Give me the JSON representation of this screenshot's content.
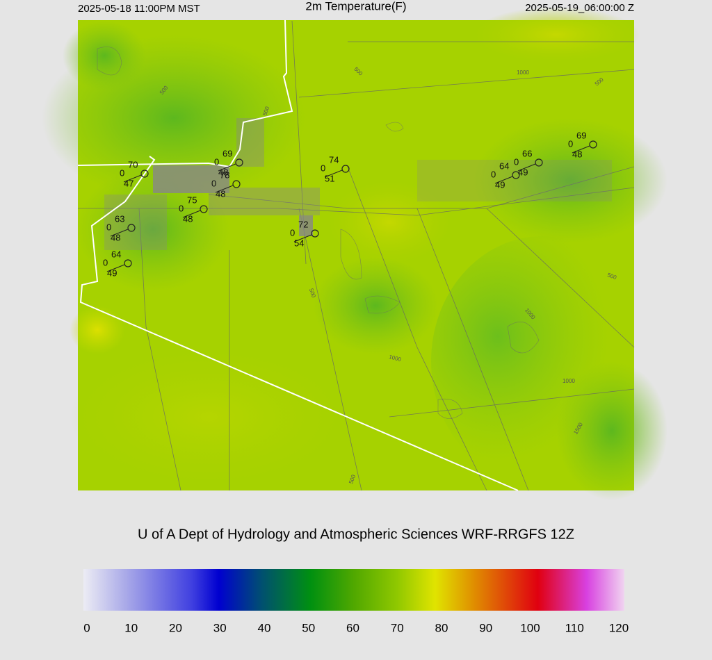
{
  "header": {
    "valid_local": "2025-05-18 11:00PM MST",
    "title": "2m Temperature(F)",
    "valid_utc": "2025-05-19_06:00:00 Z"
  },
  "stations": [
    {
      "temp": "70",
      "wind": "0",
      "dewpoint": "47"
    },
    {
      "temp": "69",
      "wind": "0",
      "dewpoint": "48"
    },
    {
      "temp": "78",
      "wind": "0",
      "dewpoint": "48"
    },
    {
      "temp": "75",
      "wind": "0",
      "dewpoint": "48"
    },
    {
      "temp": "63",
      "wind": "0",
      "dewpoint": "48"
    },
    {
      "temp": "64",
      "wind": "0",
      "dewpoint": "49"
    },
    {
      "temp": "74",
      "wind": "0",
      "dewpoint": "51"
    },
    {
      "temp": "72",
      "wind": "0",
      "dewpoint": "54"
    },
    {
      "temp": "64",
      "wind": "0",
      "dewpoint": "49"
    },
    {
      "temp": "66",
      "wind": "0",
      "dewpoint": "49"
    },
    {
      "temp": "69",
      "wind": "0",
      "dewpoint": "48"
    }
  ],
  "contour_labels": [
    "500",
    "500",
    "1000",
    "500",
    "500",
    "500",
    "1000",
    "500",
    "1000",
    "1000",
    "1500",
    "500"
  ],
  "credit": "U of A Dept of Hydrology and Atmospheric Sciences WRF-RRGFS 12Z",
  "colorbar": {
    "lim": [
      0,
      120
    ],
    "ticks": [
      0,
      10,
      20,
      30,
      40,
      50,
      60,
      70,
      80,
      90,
      100,
      110,
      120
    ]
  }
}
